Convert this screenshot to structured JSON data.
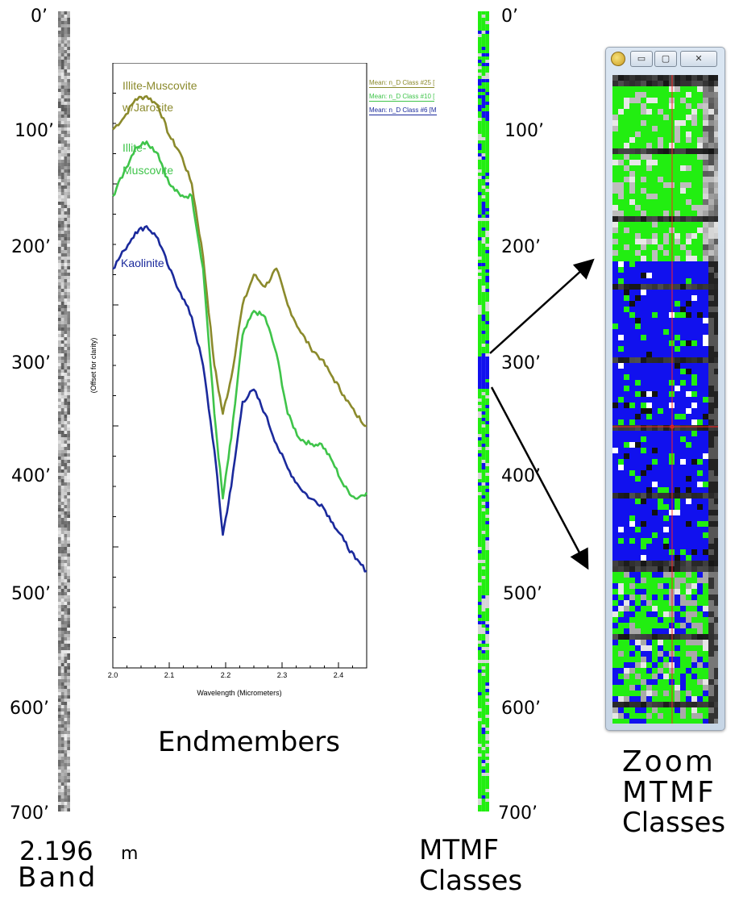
{
  "depth_labels_left": [
    "0’",
    "100’",
    "200’",
    "300’",
    "400’",
    "500’",
    "600’",
    "700’"
  ],
  "depth_labels_right": [
    "0’",
    "100’",
    "200’",
    "300’",
    "400’",
    "500’",
    "600’",
    "700’"
  ],
  "captions": {
    "band_value": "2.196",
    "band_unit": "m",
    "band_word": "Band",
    "mtmf": "MTMF",
    "classes": "Classes",
    "endmembers": "Endmembers",
    "zoom": "Zoom",
    "zoom_mtmf": "MTMF",
    "zoom_classes": "Classes"
  },
  "legend": [
    {
      "text": "Mean: n_D Class #25 [",
      "color": "#8b8a2c"
    },
    {
      "text": "Mean: n_D Class #10 [",
      "color": "#3fc44a"
    },
    {
      "text": "Mean: n_D Class #6 [M",
      "color": "#1b2a9c"
    }
  ],
  "colors": {
    "illite_jarosite": "#8b8a2c",
    "illite_muscovite": "#3fc44a",
    "kaolinite": "#1b2a9c",
    "mtmf_green": "#22ee11",
    "mtmf_blue": "#1111ee"
  },
  "chart_data": {
    "type": "line",
    "xlabel": "Wavelength (Micrometers)",
    "ylabel": "(Offset for clarity)",
    "xlim": [
      2.0,
      2.45
    ],
    "ylim": [
      0,
      1
    ],
    "x_ticks": [
      "2.0",
      "2.1",
      "2.2",
      "2.3",
      "2.4"
    ],
    "series": [
      {
        "name": "Illite-Muscovite w/Jarosite",
        "label_lines": [
          "Illite-Muscovite",
          "w/Jarosite"
        ],
        "color": "#8b8a2c",
        "x": [
          2.0,
          2.02,
          2.04,
          2.06,
          2.08,
          2.1,
          2.12,
          2.14,
          2.16,
          2.18,
          2.195,
          2.21,
          2.23,
          2.25,
          2.27,
          2.29,
          2.31,
          2.33,
          2.35,
          2.37,
          2.39,
          2.41,
          2.43,
          2.45
        ],
        "y": [
          0.89,
          0.91,
          0.94,
          0.945,
          0.93,
          0.88,
          0.85,
          0.8,
          0.68,
          0.5,
          0.42,
          0.48,
          0.6,
          0.65,
          0.63,
          0.66,
          0.6,
          0.56,
          0.53,
          0.51,
          0.48,
          0.45,
          0.42,
          0.4
        ]
      },
      {
        "name": "Illite-Muscovite",
        "label_lines": [
          "Illite-",
          "Muscovite"
        ],
        "color": "#3fc44a",
        "x": [
          2.0,
          2.02,
          2.04,
          2.06,
          2.08,
          2.1,
          2.12,
          2.14,
          2.16,
          2.18,
          2.195,
          2.21,
          2.23,
          2.25,
          2.27,
          2.29,
          2.31,
          2.33,
          2.35,
          2.37,
          2.39,
          2.41,
          2.43,
          2.45
        ],
        "y": [
          0.78,
          0.82,
          0.86,
          0.87,
          0.85,
          0.8,
          0.78,
          0.78,
          0.66,
          0.42,
          0.28,
          0.38,
          0.55,
          0.59,
          0.58,
          0.52,
          0.42,
          0.38,
          0.37,
          0.37,
          0.34,
          0.3,
          0.28,
          0.29
        ]
      },
      {
        "name": "Kaolinite",
        "label_lines": [
          "Kaolinite"
        ],
        "color": "#1b2a9c",
        "x": [
          2.0,
          2.02,
          2.04,
          2.06,
          2.08,
          2.1,
          2.12,
          2.14,
          2.16,
          2.18,
          2.195,
          2.21,
          2.23,
          2.25,
          2.27,
          2.29,
          2.31,
          2.33,
          2.35,
          2.37,
          2.39,
          2.41,
          2.43,
          2.45
        ],
        "y": [
          0.66,
          0.69,
          0.72,
          0.73,
          0.71,
          0.66,
          0.62,
          0.58,
          0.5,
          0.36,
          0.22,
          0.3,
          0.44,
          0.46,
          0.42,
          0.37,
          0.33,
          0.3,
          0.28,
          0.27,
          0.24,
          0.21,
          0.18,
          0.16
        ]
      }
    ]
  },
  "zoom_window": {
    "buttons": [
      "minimize",
      "maximize",
      "close"
    ]
  }
}
